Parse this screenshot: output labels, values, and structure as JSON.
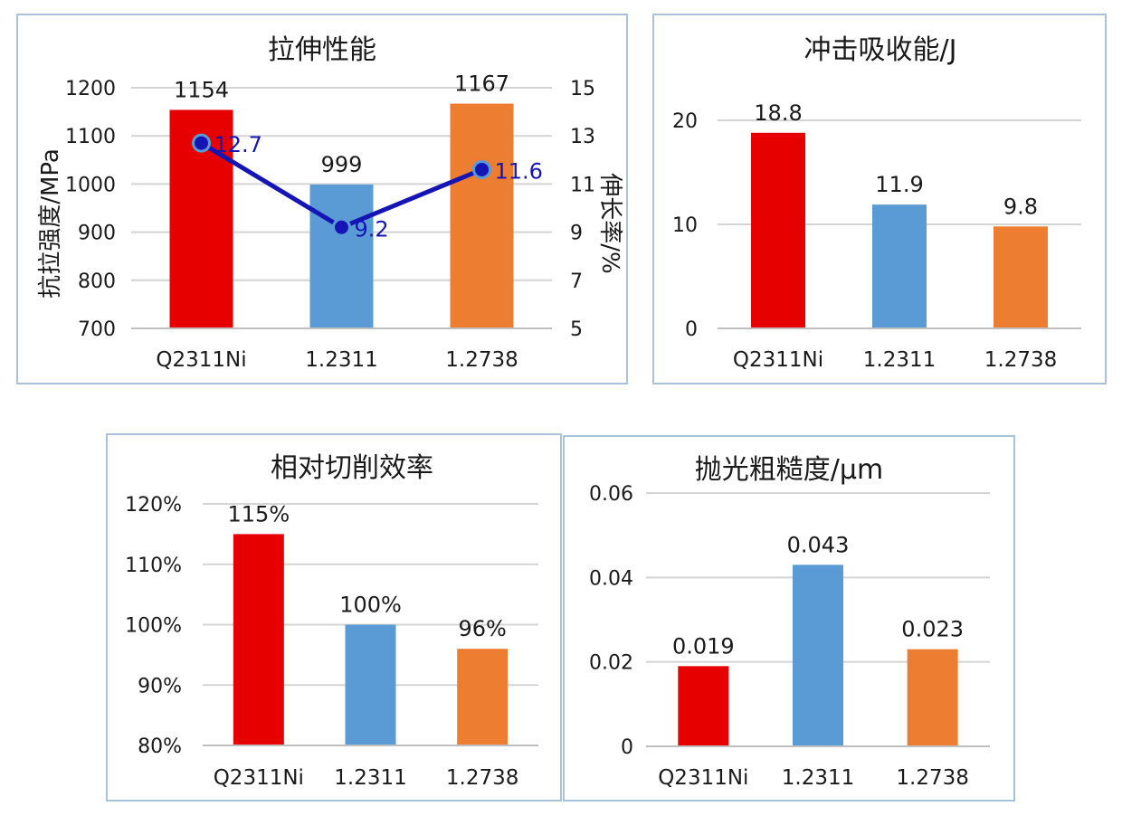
{
  "chart_data": [
    {
      "type": "bar",
      "title": "拉伸性能",
      "categories": [
        "Q2311Ni",
        "1.2311",
        "1.2738"
      ],
      "series": [
        {
          "values": [
            1154,
            999,
            1167
          ],
          "data_labels": [
            "1154",
            "999",
            "1167"
          ],
          "axis": "left"
        },
        {
          "type": "line",
          "values": [
            12.7,
            9.2,
            11.6
          ],
          "data_labels": [
            "12.7",
            "9.2",
            "11.6"
          ],
          "axis": "right"
        }
      ],
      "ylabel": "抗拉强度/MPa",
      "y2label": "伸长率/%",
      "ylim": [
        700,
        1200
      ],
      "y2lim": [
        5,
        15
      ],
      "yticks": [
        "700",
        "800",
        "900",
        "1000",
        "1100",
        "1200"
      ],
      "y2ticks": [
        "5",
        "7",
        "9",
        "11",
        "13",
        "15"
      ],
      "bar_colors": [
        "#e60000",
        "#5b9bd5",
        "#ed7d31"
      ],
      "line_color": "#1515b5",
      "grid": true
    },
    {
      "type": "bar",
      "title": "冲击吸收能/J",
      "categories": [
        "Q2311Ni",
        "1.2311",
        "1.2738"
      ],
      "values": [
        18.8,
        11.9,
        9.8
      ],
      "data_labels": [
        "18.8",
        "11.9",
        "9.8"
      ],
      "ylim": [
        0,
        20
      ],
      "yticks": [
        "0",
        "10",
        "20"
      ],
      "bar_colors": [
        "#e60000",
        "#5b9bd5",
        "#ed7d31"
      ],
      "grid": true
    },
    {
      "type": "bar",
      "title": "相对切削效率",
      "categories": [
        "Q2311Ni",
        "1.2311",
        "1.2738"
      ],
      "values": [
        115,
        100,
        96
      ],
      "data_labels": [
        "115%",
        "100%",
        "96%"
      ],
      "ylim": [
        80,
        120
      ],
      "yticks": [
        "80%",
        "90%",
        "100%",
        "110%",
        "120%"
      ],
      "bar_colors": [
        "#e60000",
        "#5b9bd5",
        "#ed7d31"
      ],
      "grid": true
    },
    {
      "type": "bar",
      "title": "抛光粗糙度/μm",
      "categories": [
        "Q2311Ni",
        "1.2311",
        "1.2738"
      ],
      "values": [
        0.019,
        0.043,
        0.023
      ],
      "data_labels": [
        "0.019",
        "0.043",
        "0.023"
      ],
      "ylim": [
        0,
        0.06
      ],
      "yticks": [
        "0",
        "0.02",
        "0.04",
        "0.06"
      ],
      "bar_colors": [
        "#e60000",
        "#5b9bd5",
        "#ed7d31"
      ],
      "grid": true
    }
  ]
}
